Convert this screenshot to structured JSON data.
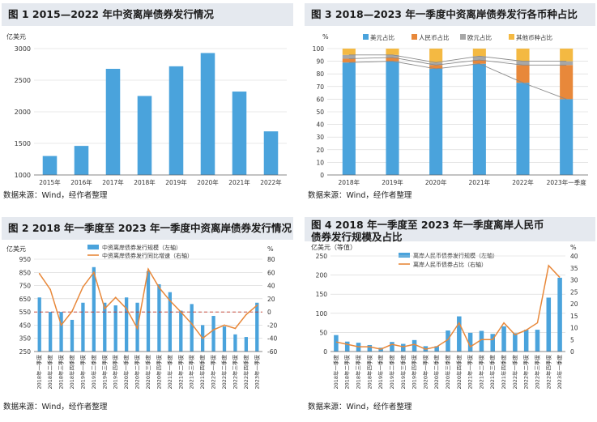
{
  "source_note": "数据来源：Wind，经作者整理",
  "colors": {
    "blue": "#4aa3dc",
    "orange": "#e8883a",
    "gray": "#a7a7a7",
    "yellow": "#f4b942",
    "grid": "#d3d3d3",
    "red": "#c0392b",
    "header_bg": "#e5e9ef"
  },
  "chart_data": [
    {
      "id": "fig1",
      "type": "bar",
      "title": "图 1   2015—2022 年中资离岸债券发行情况",
      "unit": "亿美元",
      "categories": [
        "2015年",
        "2016年",
        "2017年",
        "2018年",
        "2019年",
        "2020年",
        "2021年",
        "2022年"
      ],
      "values": [
        1300,
        1460,
        2680,
        2250,
        2720,
        2930,
        2320,
        1690
      ],
      "ylim": [
        1000,
        3000
      ],
      "yticks": [
        1000,
        1500,
        2000,
        2500,
        3000
      ],
      "grid": true
    },
    {
      "id": "fig3",
      "type": "bar",
      "stacked": true,
      "title": "图 3   2018—2023 年一季度中资离岸债券发行各币种占比",
      "unit": "%",
      "categories": [
        "2018年",
        "2019年",
        "2020年",
        "2021年",
        "2022年",
        "2023年一季度"
      ],
      "series": [
        {
          "name": "美元占比",
          "values": [
            89,
            90,
            84,
            88,
            73,
            60
          ]
        },
        {
          "name": "人民币占比",
          "values": [
            3,
            3,
            3,
            3,
            14,
            27
          ]
        },
        {
          "name": "欧元占比",
          "values": [
            3,
            2,
            2,
            3,
            3,
            3
          ]
        },
        {
          "name": "其他币种占比",
          "values": [
            5,
            5,
            11,
            6,
            10,
            10
          ]
        }
      ],
      "ylim": [
        0,
        100
      ],
      "yticks": [
        0,
        10,
        20,
        30,
        40,
        50,
        60,
        70,
        80,
        90,
        100
      ],
      "legend": "top",
      "grid": true
    },
    {
      "id": "fig2",
      "type": "bar+line",
      "title": "图 2   2018 年一季度至 2023 年一季度中资离岸债券发行情况",
      "unit_left": "亿美元",
      "unit_right": "%",
      "categories": [
        "2018年一季度",
        "2018年二季度",
        "2018年三季度",
        "2018年四季度",
        "2019年一季度",
        "2019年二季度",
        "2019年三季度",
        "2019年四季度",
        "2020年一季度",
        "2020年二季度",
        "2020年三季度",
        "2020年四季度",
        "2021年一季度",
        "2021年二季度",
        "2021年三季度",
        "2021年四季度",
        "2022年一季度",
        "2022年二季度",
        "2022年三季度",
        "2022年四季度",
        "2023年一季度"
      ],
      "series": [
        {
          "name": "中资离岸债券发行规模（左轴）",
          "axis": "left",
          "values": [
            660,
            550,
            550,
            490,
            620,
            890,
            620,
            600,
            660,
            620,
            860,
            760,
            700,
            560,
            610,
            450,
            520,
            440,
            380,
            360,
            620
          ]
        },
        {
          "name": "中资离岸债券发行同比增速（右轴）",
          "axis": "right",
          "values": [
            58,
            34,
            -20,
            1,
            38,
            60,
            5,
            22,
            5,
            -25,
            65,
            37,
            17,
            0,
            -18,
            -40,
            -27,
            -20,
            -25,
            -4,
            10
          ]
        }
      ],
      "ylim_left": [
        250,
        950
      ],
      "yticks_left": [
        250,
        350,
        450,
        550,
        650,
        750,
        850,
        950
      ],
      "ylim_right": [
        -60,
        80
      ],
      "yticks_right": [
        -60,
        -40,
        -20,
        0,
        20,
        40,
        60,
        80
      ],
      "reference_line": {
        "axis": "right",
        "value": 0
      },
      "legend": "top",
      "grid": true
    },
    {
      "id": "fig4",
      "type": "bar+line",
      "title": "图 4   2018 年一季度至 2023 年一季度离岸人民币债券发行规模及占比",
      "unit_left": "亿美元（等值）",
      "unit_right": "%",
      "categories": [
        "2018年一季度",
        "2018年二季度",
        "2018年三季度",
        "2018年四季度",
        "2019年一季度",
        "2019年二季度",
        "2019年三季度",
        "2019年四季度",
        "2020年一季度",
        "2020年二季度",
        "2020年三季度",
        "2020年四季度",
        "2021年一季度",
        "2021年二季度",
        "2021年三季度",
        "2021年四季度",
        "2022年一季度",
        "2022年二季度",
        "2022年三季度",
        "2022年四季度",
        "2023年一季度"
      ],
      "series": [
        {
          "name": "离岸人民币债券发行规模（左轴）",
          "axis": "left",
          "values": [
            43,
            26,
            23,
            17,
            10,
            25,
            20,
            30,
            14,
            14,
            55,
            92,
            49,
            54,
            46,
            66,
            48,
            57,
            57,
            141,
            193
          ]
        },
        {
          "name": "离岸人民币债券占比（右轴）",
          "axis": "right",
          "values": [
            4,
            3,
            2,
            2,
            1,
            3,
            2,
            3,
            1,
            2,
            5,
            12,
            2,
            5,
            5,
            12,
            7,
            9,
            12,
            36,
            31
          ]
        }
      ],
      "ylim_left": [
        0,
        250
      ],
      "yticks_left": [
        0,
        50,
        100,
        150,
        200,
        250
      ],
      "ylim_right": [
        0,
        40
      ],
      "yticks_right": [
        0,
        5,
        10,
        15,
        20,
        25,
        30,
        35,
        40
      ],
      "legend": "top",
      "grid": true
    }
  ]
}
